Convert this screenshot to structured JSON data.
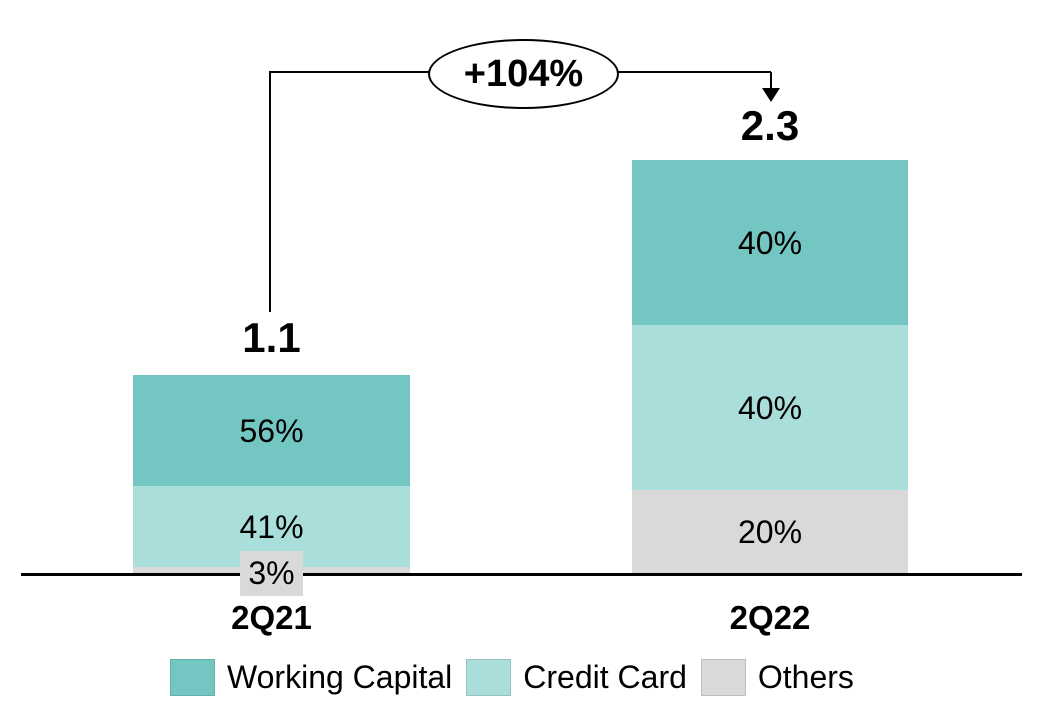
{
  "chart_data": {
    "type": "bar",
    "stacked": true,
    "categories": [
      "2Q21",
      "2Q22"
    ],
    "totals": [
      1.1,
      2.3
    ],
    "total_labels": [
      "1.1",
      "2.3"
    ],
    "series": [
      {
        "name": "Working Capital",
        "color": "#74c6c2",
        "values_pct": [
          56,
          40
        ],
        "labels": [
          "56%",
          "40%"
        ]
      },
      {
        "name": "Credit Card",
        "color": "#aadedb",
        "values_pct": [
          41,
          40
        ],
        "labels": [
          "41%",
          "40%"
        ]
      },
      {
        "name": "Others",
        "color": "#d9d9d9",
        "values_pct": [
          3,
          20
        ],
        "labels": [
          "3%",
          "20%"
        ]
      }
    ],
    "annotation": {
      "label": "+104%"
    },
    "legend_position": "bottom",
    "axes": {
      "y_axis_visible": false,
      "x_baseline_visible": true
    }
  },
  "colors": {
    "working_capital": "#74c6c2",
    "credit_card": "#aadedb",
    "others": "#d9d9d9",
    "line": "#000000",
    "background": "#ffffff"
  }
}
